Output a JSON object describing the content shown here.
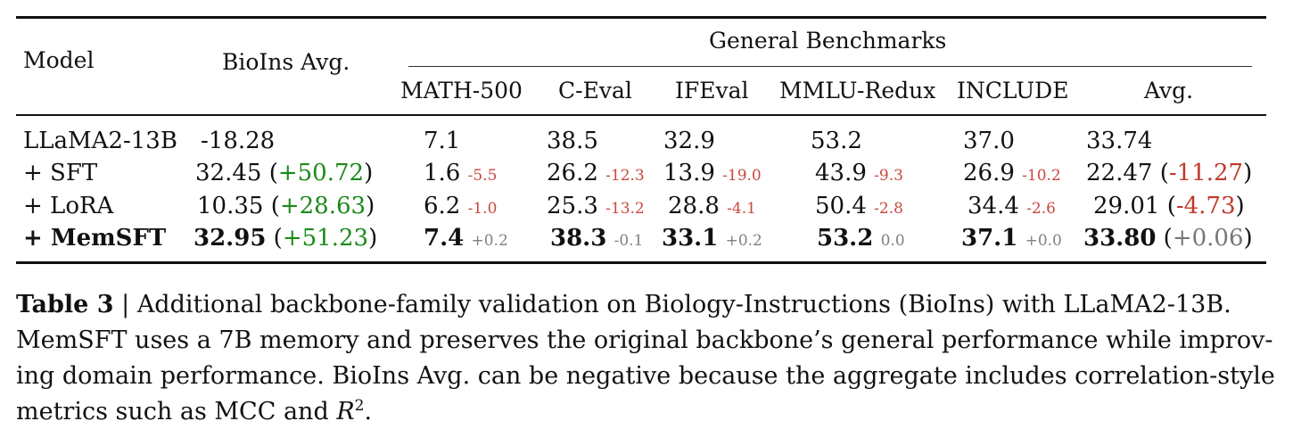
{
  "table": {
    "header": {
      "model": "Model",
      "bioins_avg": "BioIns Avg.",
      "general_benchmarks": "General Benchmarks",
      "columns": [
        "MATH-500",
        "C-Eval",
        "IFEval",
        "MMLU-Redux",
        "INCLUDE",
        "Avg."
      ]
    },
    "rows": [
      {
        "model": "LLaMA2-13B",
        "bioins": "-18.28",
        "bioins_delta": "",
        "cells": [
          {
            "value": "7.1",
            "delta": ""
          },
          {
            "value": "38.5",
            "delta": ""
          },
          {
            "value": "32.9",
            "delta": ""
          },
          {
            "value": "53.2",
            "delta": ""
          },
          {
            "value": "37.0",
            "delta": ""
          }
        ],
        "avg": "33.74",
        "avg_delta": ""
      },
      {
        "model": "+ SFT",
        "bioins": "32.45",
        "bioins_delta": "+50.72",
        "cells": [
          {
            "value": "1.6",
            "delta": "-5.5"
          },
          {
            "value": "26.2",
            "delta": "-12.3"
          },
          {
            "value": "13.9",
            "delta": "-19.0"
          },
          {
            "value": "43.9",
            "delta": "-9.3"
          },
          {
            "value": "26.9",
            "delta": "-10.2"
          }
        ],
        "avg": "22.47",
        "avg_delta": "-11.27"
      },
      {
        "model": "+ LoRA",
        "bioins": "10.35",
        "bioins_delta": "+28.63",
        "cells": [
          {
            "value": "6.2",
            "delta": "-1.0"
          },
          {
            "value": "25.3",
            "delta": "-13.2"
          },
          {
            "value": "28.8",
            "delta": "-4.1"
          },
          {
            "value": "50.4",
            "delta": "-2.8"
          },
          {
            "value": "34.4",
            "delta": "-2.6"
          }
        ],
        "avg": "29.01",
        "avg_delta": "-4.73"
      },
      {
        "model": "+ MemSFT",
        "bioins": "32.95",
        "bioins_delta": "+51.23",
        "cells": [
          {
            "value": "7.4",
            "delta": "+0.2"
          },
          {
            "value": "38.3",
            "delta": "-0.1"
          },
          {
            "value": "33.1",
            "delta": "+0.2"
          },
          {
            "value": "53.2",
            "delta": "0.0"
          },
          {
            "value": "37.1",
            "delta": "+0.0"
          }
        ],
        "avg": "33.80",
        "avg_delta": "+0.06"
      }
    ]
  },
  "caption": {
    "label": "Table 3",
    "separator": "|",
    "line1": "Additional backbone-family validation on Biology-Instructions (BioIns) with LLaMA2-13B.",
    "line2": "MemSFT uses a 7B memory and preserves the original backbone’s general performance while improv-",
    "line3": "ing domain performance. BioIns Avg. can be negative because the aggregate includes correlation-style",
    "line4_prefix": "metrics such as MCC and",
    "line4_var": "R",
    "line4_sup": "2",
    "line4_suffix": "."
  },
  "colors": {
    "positive": "#1a8a1a",
    "negative": "#c0392b",
    "neutral": "#777777"
  }
}
